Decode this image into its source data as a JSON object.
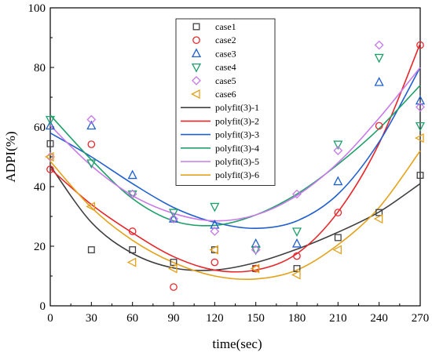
{
  "chart_data": {
    "type": "scatter",
    "xlabel": "time(sec)",
    "ylabel": "ADPI(%)",
    "xlim": [
      0,
      270
    ],
    "ylim": [
      0,
      100
    ],
    "xticks": [
      "0",
      "30",
      "60",
      "90",
      "120",
      "150",
      "180",
      "210",
      "240",
      "270"
    ],
    "yticks": [
      "0",
      "20",
      "40",
      "60",
      "80",
      "100"
    ],
    "grid": false,
    "legend_position": "top-center",
    "x": [
      0,
      30,
      60,
      90,
      120,
      150,
      180,
      210,
      240,
      270
    ],
    "series": [
      {
        "name": "case1",
        "marker": "square",
        "color": "#404040",
        "values": [
          54.4,
          18.8,
          18.8,
          14.6,
          18.8,
          12.5,
          12.5,
          22.9,
          31.3,
          43.8
        ]
      },
      {
        "name": "case2",
        "marker": "circle",
        "color": "#e8262a",
        "values": [
          45.8,
          54.2,
          25.0,
          6.3,
          14.6,
          12.5,
          16.7,
          31.3,
          60.4,
          87.5
        ]
      },
      {
        "name": "case3",
        "marker": "triangle-up",
        "color": "#1f5fcf",
        "values": [
          60.4,
          60.4,
          43.8,
          29.2,
          27.1,
          20.8,
          20.8,
          41.7,
          75.0,
          68.8
        ]
      },
      {
        "name": "case4",
        "marker": "triangle-down",
        "color": "#1fa06a",
        "values": [
          62.5,
          47.9,
          37.5,
          31.3,
          33.3,
          18.8,
          25.0,
          54.2,
          83.3,
          60.4
        ]
      },
      {
        "name": "case5",
        "marker": "diamond",
        "color": "#c77ae8",
        "values": [
          50.0,
          62.5,
          37.5,
          29.2,
          25.0,
          18.8,
          37.5,
          52.1,
          87.5,
          66.7
        ]
      },
      {
        "name": "case6",
        "marker": "triangle-left",
        "color": "#e3a21a",
        "values": [
          50.0,
          33.3,
          14.6,
          12.5,
          18.8,
          12.5,
          10.4,
          18.8,
          29.2,
          56.3
        ]
      }
    ],
    "fits": [
      {
        "name": "polyfit(3)-1",
        "color": "#404040",
        "values": [
          47.0,
          28.0,
          17.6,
          12.7,
          12.0,
          14.5,
          19.0,
          24.7,
          31.5,
          41.0
        ]
      },
      {
        "name": "polyfit(3)-2",
        "color": "#e8262a",
        "values": [
          46.0,
          34.0,
          24.5,
          16.5,
          12.0,
          12.0,
          17.5,
          31.5,
          54.5,
          88.0
        ]
      },
      {
        "name": "polyfit(3)-3",
        "color": "#1f5fcf",
        "values": [
          58.0,
          50.0,
          41.0,
          33.0,
          28.0,
          26.0,
          28.5,
          37.5,
          55.0,
          80.0
        ]
      },
      {
        "name": "polyfit(3)-4",
        "color": "#1fa06a",
        "values": [
          64.0,
          49.0,
          36.0,
          28.5,
          27.0,
          30.5,
          37.5,
          47.5,
          59.5,
          74.0
        ]
      },
      {
        "name": "polyfit(3)-5",
        "color": "#c77ae8",
        "values": [
          60.5,
          47.0,
          37.0,
          31.0,
          28.5,
          30.5,
          37.0,
          48.0,
          63.0,
          80.0
        ]
      },
      {
        "name": "polyfit(3)-6",
        "color": "#e3a21a",
        "values": [
          48.5,
          33.0,
          22.0,
          14.5,
          10.0,
          9.0,
          12.0,
          20.5,
          33.0,
          52.0
        ]
      }
    ]
  }
}
